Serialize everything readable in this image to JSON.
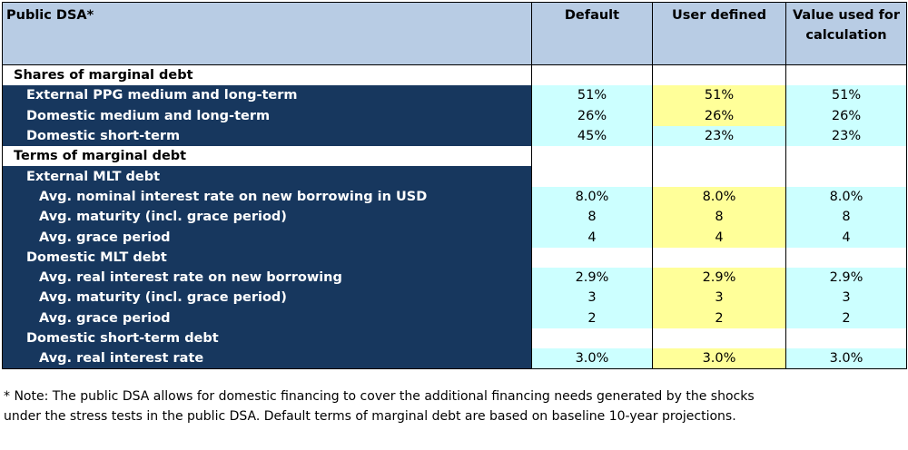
{
  "header": {
    "title": "Public DSA*",
    "col_default": "Default",
    "col_user": "User defined",
    "col_calc": "Value used for calculation"
  },
  "rows": [
    {
      "label": "Shares of marginal debt",
      "level": 1,
      "section": true
    },
    {
      "label": "External PPG medium and long-term",
      "level": 2,
      "default": "51%",
      "user": "51%",
      "calc": "51%"
    },
    {
      "label": "Domestic medium and long-term",
      "level": 2,
      "default": "26%",
      "user": "26%",
      "calc": "26%"
    },
    {
      "label": "Domestic short-term",
      "level": 2,
      "default": "45%",
      "user": "23%",
      "calc": "23%"
    },
    {
      "label": "Terms of marginal debt",
      "level": 1,
      "section": true
    },
    {
      "label": "External MLT debt",
      "level": 2,
      "group": true
    },
    {
      "label": "Avg. nominal interest rate on new borrowing in USD",
      "level": 3,
      "default": "8.0%",
      "user": "8.0%",
      "calc": "8.0%"
    },
    {
      "label": "Avg. maturity (incl. grace period)",
      "level": 3,
      "default": "8",
      "user": "8",
      "calc": "8"
    },
    {
      "label": "Avg. grace period",
      "level": 3,
      "default": "4",
      "user": "4",
      "calc": "4"
    },
    {
      "label": "Domestic MLT debt",
      "level": 2,
      "group": true
    },
    {
      "label": "Avg. real interest rate on new borrowing",
      "level": 3,
      "default": "2.9%",
      "user": "2.9%",
      "calc": "2.9%"
    },
    {
      "label": "Avg. maturity (incl. grace period)",
      "level": 3,
      "default": "3",
      "user": "3",
      "calc": "3"
    },
    {
      "label": "Avg. grace period",
      "level": 3,
      "default": "2",
      "user": "2",
      "calc": "2"
    },
    {
      "label": "Domestic short-term debt",
      "level": 2,
      "group": true
    },
    {
      "label": "Avg. real interest rate",
      "level": 3,
      "default": "3.0%",
      "user": "3.0%",
      "calc": "3.0%"
    }
  ],
  "note": "* Note: The public DSA allows for domestic financing to cover the additional financing needs generated by the shocks under the stress tests in the public DSA. Default terms of marginal debt are based on baseline 10-year projections.",
  "colors": {
    "header_bg": "#b8cce4",
    "label_bg": "#17375e",
    "default_bg": "#ccffff",
    "user_bg": "#ffff99"
  }
}
